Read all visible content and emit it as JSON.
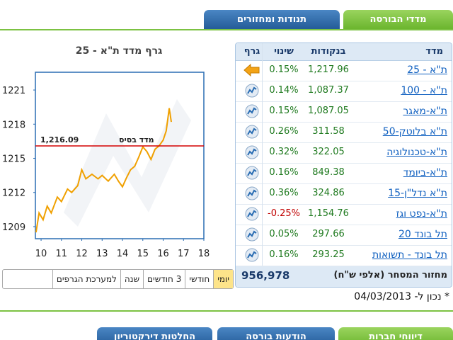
{
  "tabs_top": [
    "מדדי הבורסה",
    "תנודות ומחזורים"
  ],
  "table": {
    "headers": [
      "מדד",
      "בנקודות",
      "שינוי",
      "גרף"
    ],
    "rows": [
      [
        "ת\"א - 25",
        "1,217.96",
        "0.15%"
      ],
      [
        "ת\"א - 100",
        "1,087.37",
        "0.14%"
      ],
      [
        "ת\"א-מאגר",
        "1,087.05",
        "0.15%"
      ],
      [
        "ת\"א בלוטק-50",
        "311.58",
        "0.26%"
      ],
      [
        "ת\"א-טכנולוגיה",
        "322.05",
        "0.32%"
      ],
      [
        "ת\"א-ביומד",
        "849.38",
        "0.16%"
      ],
      [
        "ת\"א נדל\"ן-15",
        "324.86",
        "0.36%"
      ],
      [
        "ת\"א-נפט וגז",
        "1,154.76",
        "-0.25%"
      ],
      [
        "תל בונד 20",
        "297.66",
        "0.05%"
      ],
      [
        "תל בונד - תשואות",
        "293.25",
        "0.16%"
      ]
    ],
    "footer": {
      "label": "מחזור המסחר (אלפי ש\"ח)",
      "value": "956,978"
    }
  },
  "as_of": "* נכון ל- 04/03/2013",
  "chart_data": {
    "type": "line",
    "title": "גרף מדד ת\"א - 25",
    "x": [
      9.75,
      9.9,
      10.1,
      10.3,
      10.5,
      10.8,
      11.0,
      11.3,
      11.5,
      11.8,
      12.0,
      12.2,
      12.5,
      12.8,
      13.0,
      13.3,
      13.6,
      13.8,
      14.0,
      14.2,
      14.4,
      14.6,
      14.8,
      15.0,
      15.2,
      15.4,
      15.6,
      15.8,
      16.0,
      16.15,
      16.3,
      16.4
    ],
    "series": [
      {
        "name": "ת\"א - 25",
        "color": "#f0a000",
        "values": [
          1208.5,
          1210.2,
          1209.6,
          1210.8,
          1210.2,
          1211.6,
          1211.2,
          1212.3,
          1212.0,
          1212.6,
          1214.0,
          1213.2,
          1213.6,
          1213.2,
          1213.5,
          1213.0,
          1213.6,
          1213.0,
          1212.5,
          1213.3,
          1214.0,
          1214.3,
          1215.1,
          1216.0,
          1215.6,
          1214.9,
          1215.8,
          1216.1,
          1216.6,
          1217.4,
          1219.4,
          1218.2
        ]
      }
    ],
    "xlim": [
      9.72,
      18
    ],
    "xticks": [
      10,
      11,
      12,
      13,
      14,
      15,
      16,
      17,
      18
    ],
    "ylim": [
      1207.94,
      1222.56
    ],
    "yticks": [
      1209,
      1212,
      1215,
      1218,
      1221
    ],
    "baseline": {
      "value": 1216.09,
      "label": "1,216.09"
    },
    "baseline_text": "מדד בסיס",
    "baseline_color": "#d40000"
  },
  "chart_buttons": [
    "יומי",
    "חודשי",
    "3 חודשים",
    "שנה",
    "למערכת הגרפים"
  ],
  "tabs_bottom": [
    "דיווחי חברות",
    "הודעות בורסה",
    "החלטות דירקטוריון"
  ]
}
